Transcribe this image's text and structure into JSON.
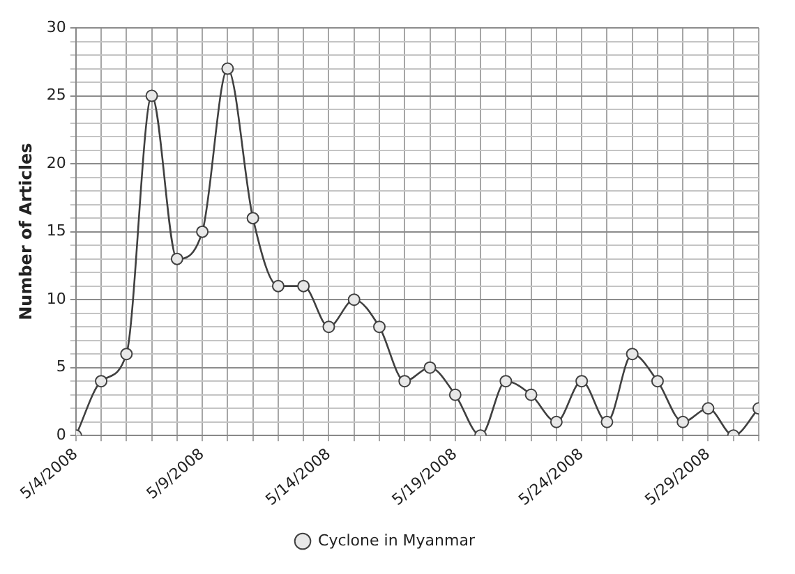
{
  "chart_data": {
    "type": "line",
    "ylabel": "Number of Articles",
    "x": [
      "2008-05-04",
      "2008-05-05",
      "2008-05-06",
      "2008-05-07",
      "2008-05-08",
      "2008-05-09",
      "2008-05-10",
      "2008-05-11",
      "2008-05-12",
      "2008-05-13",
      "2008-05-14",
      "2008-05-15",
      "2008-05-16",
      "2008-05-17",
      "2008-05-18",
      "2008-05-19",
      "2008-05-20",
      "2008-05-21",
      "2008-05-22",
      "2008-05-23",
      "2008-05-24",
      "2008-05-25",
      "2008-05-26",
      "2008-05-27",
      "2008-05-28",
      "2008-05-29",
      "2008-05-30",
      "2008-05-31"
    ],
    "series": [
      {
        "name": "Cyclone in Myanmar",
        "color": "#404040",
        "values": [
          0,
          4,
          6,
          25,
          13,
          15,
          27,
          16,
          11,
          11,
          8,
          10,
          8,
          4,
          5,
          3,
          0,
          4,
          3,
          1,
          4,
          1,
          6,
          4,
          1,
          2,
          0,
          2
        ]
      }
    ],
    "xlim": [
      "2008-05-04",
      "2008-05-31"
    ],
    "xticks": [
      {
        "value": "2008-05-04",
        "label": "5/4/2008"
      },
      {
        "value": "2008-05-05",
        "label": null
      },
      {
        "value": "2008-05-06",
        "label": null
      },
      {
        "value": "2008-05-07",
        "label": null
      },
      {
        "value": "2008-05-08",
        "label": null
      },
      {
        "value": "2008-05-09",
        "label": "5/9/2008"
      },
      {
        "value": "2008-05-10",
        "label": null
      },
      {
        "value": "2008-05-11",
        "label": null
      },
      {
        "value": "2008-05-12",
        "label": null
      },
      {
        "value": "2008-05-13",
        "label": null
      },
      {
        "value": "2008-05-14",
        "label": "5/14/2008"
      },
      {
        "value": "2008-05-15",
        "label": null
      },
      {
        "value": "2008-05-16",
        "label": null
      },
      {
        "value": "2008-05-17",
        "label": null
      },
      {
        "value": "2008-05-18",
        "label": null
      },
      {
        "value": "2008-05-19",
        "label": "5/19/2008"
      },
      {
        "value": "2008-05-20",
        "label": null
      },
      {
        "value": "2008-05-21",
        "label": null
      },
      {
        "value": "2008-05-22",
        "label": null
      },
      {
        "value": "2008-05-23",
        "label": null
      },
      {
        "value": "2008-05-24",
        "label": "5/24/2008"
      },
      {
        "value": "2008-05-25",
        "label": null
      },
      {
        "value": "2008-05-26",
        "label": null
      },
      {
        "value": "2008-05-27",
        "label": null
      },
      {
        "value": "2008-05-28",
        "label": null
      },
      {
        "value": "2008-05-29",
        "label": "5/29/2008"
      },
      {
        "value": "2008-05-30",
        "label": null
      },
      {
        "value": "2008-05-31",
        "label": null
      }
    ],
    "ylim": [
      0,
      30
    ],
    "yticks": [
      0,
      {
        "value": 1,
        "label": null
      },
      {
        "value": 2,
        "label": null
      },
      {
        "value": 3,
        "label": null
      },
      {
        "value": 4,
        "label": null
      },
      5,
      {
        "value": 6,
        "label": null
      },
      {
        "value": 7,
        "label": null
      },
      {
        "value": 8,
        "label": null
      },
      {
        "value": 9,
        "label": null
      },
      10,
      {
        "value": 11,
        "label": null
      },
      {
        "value": 12,
        "label": null
      },
      {
        "value": 13,
        "label": null
      },
      {
        "value": 14,
        "label": null
      },
      15,
      {
        "value": 16,
        "label": null
      },
      {
        "value": 17,
        "label": null
      },
      {
        "value": 18,
        "label": null
      },
      {
        "value": 19,
        "label": null
      },
      20,
      {
        "value": 21,
        "label": null
      },
      {
        "value": 22,
        "label": null
      },
      {
        "value": 23,
        "label": null
      },
      {
        "value": 24,
        "label": null
      },
      25,
      {
        "value": 26,
        "label": null
      },
      {
        "value": 27,
        "label": null
      },
      {
        "value": 28,
        "label": null
      },
      {
        "value": 29,
        "label": null
      },
      30
    ],
    "grid": true,
    "legend": "bottom",
    "marker": "circle",
    "line_style": "solid"
  }
}
